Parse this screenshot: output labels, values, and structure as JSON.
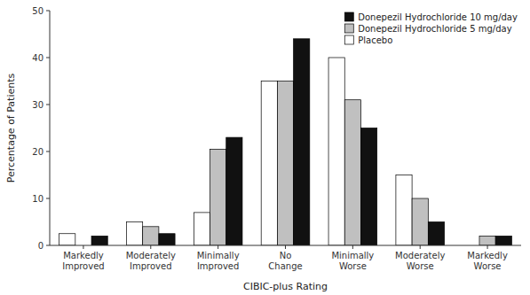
{
  "chart_data": {
    "type": "bar",
    "categories": [
      "Markedly\nImproved",
      "Moderately\nImproved",
      "Minimally\nImproved",
      "No\nChange",
      "Minimally\nWorse",
      "Moderately\nWorse",
      "Markedly\nWorse"
    ],
    "series": [
      {
        "name": "Placebo",
        "color": "#ffffff",
        "values": [
          2.5,
          5,
          7,
          35,
          40,
          15,
          0
        ]
      },
      {
        "name": "Donepezil Hydrochloride 5 mg/day",
        "color": "#c0c0c0",
        "values": [
          0,
          4,
          20.5,
          35,
          31,
          10,
          2
        ]
      },
      {
        "name": "Donepezil Hydrochloride 10 mg/day",
        "color": "#111111",
        "values": [
          2,
          2.5,
          23,
          44,
          25,
          5,
          2
        ]
      }
    ],
    "xlabel": "CIBIC-plus Rating",
    "ylabel": "Percentage of Patients",
    "ylim": [
      0,
      50
    ],
    "yticks": [
      0,
      10,
      20,
      30,
      40,
      50
    ],
    "grid": false,
    "legend": "upper right"
  }
}
